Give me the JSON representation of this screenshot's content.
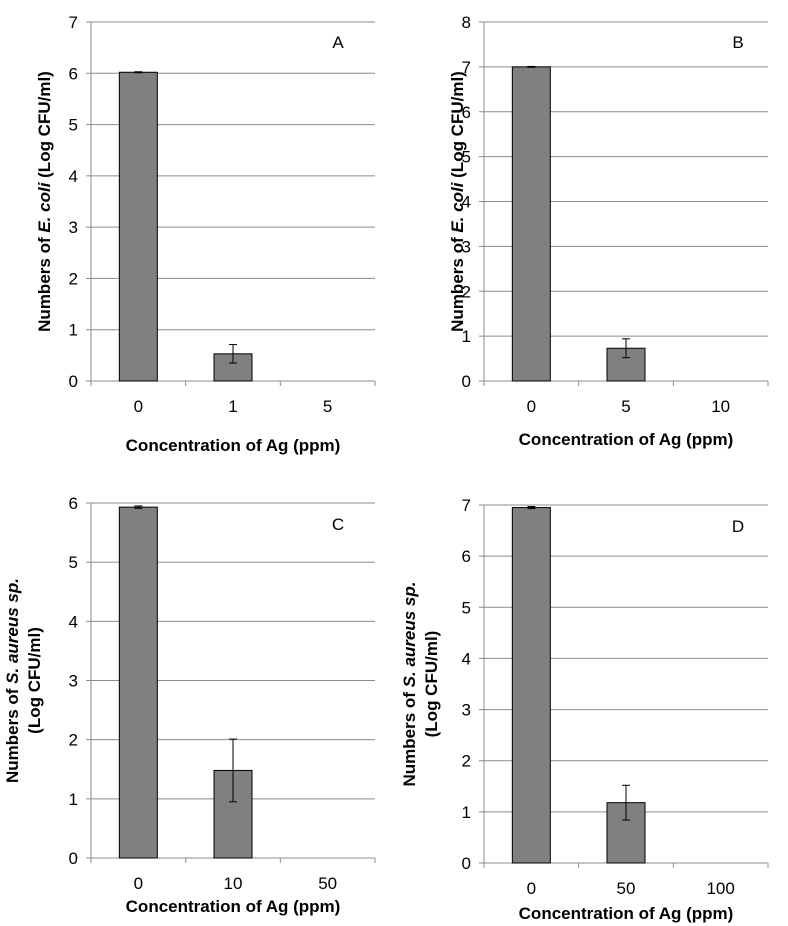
{
  "colors": {
    "bar_fill": "#808080",
    "bar_stroke": "#000000",
    "gridline": "#8c8c8c",
    "axis": "#8c8c8c",
    "background": "#ffffff"
  },
  "chart_data": [
    {
      "type": "bar",
      "panel_label": "A",
      "categories": [
        "0",
        "1",
        "5"
      ],
      "values": [
        6.02,
        0.53,
        0
      ],
      "errors": [
        0.01,
        0.18,
        0
      ],
      "xlabel": "Concentration of Ag (ppm)",
      "ylabel": {
        "lines": [
          [
            {
              "text": "Numbers of ",
              "italic": false
            },
            {
              "text": "E. coli",
              "italic": true
            },
            {
              "text": "  (Log CFU/ml)",
              "italic": false
            }
          ]
        ]
      },
      "ylim": [
        0,
        7
      ],
      "yticks": [
        "0",
        "1",
        "2",
        "3",
        "4",
        "5",
        "6",
        "7"
      ],
      "grid": true,
      "legend": "none"
    },
    {
      "type": "bar",
      "panel_label": "B",
      "categories": [
        "0",
        "5",
        "10"
      ],
      "values": [
        7.0,
        0.73,
        0
      ],
      "errors": [
        0.01,
        0.21,
        0
      ],
      "xlabel": "Concentration of Ag (ppm)",
      "ylabel": {
        "lines": [
          [
            {
              "text": "Numbers of ",
              "italic": false
            },
            {
              "text": "E. coli",
              "italic": true
            },
            {
              "text": " (Log CFU/ml)",
              "italic": false
            }
          ]
        ]
      },
      "ylim": [
        0,
        8
      ],
      "yticks": [
        "0",
        "1",
        "2",
        "3",
        "4",
        "5",
        "6",
        "7",
        "8"
      ],
      "grid": true,
      "legend": "none"
    },
    {
      "type": "bar",
      "panel_label": "C",
      "categories": [
        "0",
        "10",
        "50"
      ],
      "values": [
        5.93,
        1.48,
        0
      ],
      "errors": [
        0.02,
        0.53,
        0
      ],
      "xlabel": "Concentration of Ag (ppm)",
      "ylabel": {
        "lines": [
          [
            {
              "text": "Numbers of ",
              "italic": false
            },
            {
              "text": "S. aureus sp.",
              "italic": true
            }
          ],
          [
            {
              "text": "(Log CFU/ml)",
              "italic": false
            }
          ]
        ]
      },
      "ylim": [
        0,
        6
      ],
      "yticks": [
        "0",
        "1",
        "2",
        "3",
        "4",
        "5",
        "6"
      ],
      "grid": true,
      "legend": "none"
    },
    {
      "type": "bar",
      "panel_label": "D",
      "categories": [
        "0",
        "50",
        "100"
      ],
      "values": [
        6.95,
        1.18,
        0
      ],
      "errors": [
        0.02,
        0.34,
        0
      ],
      "xlabel": "Concentration of Ag (ppm)",
      "ylabel": {
        "lines": [
          [
            {
              "text": "Numbers of ",
              "italic": false
            },
            {
              "text": "S. aureus sp.",
              "italic": true
            }
          ],
          [
            {
              "text": "(Log CFU/ml)",
              "italic": false
            }
          ]
        ]
      },
      "ylim": [
        0,
        7
      ],
      "yticks": [
        "0",
        "1",
        "2",
        "3",
        "4",
        "5",
        "6",
        "7"
      ],
      "grid": true,
      "legend": "none"
    }
  ]
}
